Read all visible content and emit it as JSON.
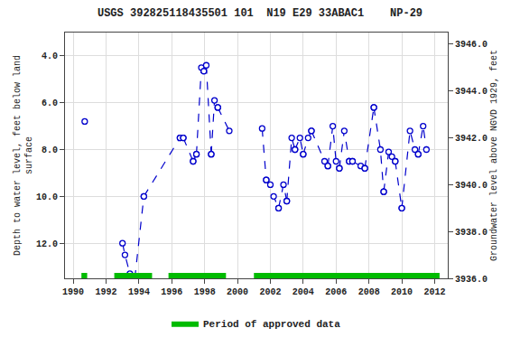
{
  "chart_data": {
    "type": "line",
    "title": "USGS 392825118435501 101  N19 E29 33ABAC1    NP-29",
    "ylabel": "Depth to water level, feet below land\nsurface",
    "y2label": "Groundwater level above NGVD 1929, feet",
    "xlim": [
      1989.5,
      2012.8
    ],
    "xticks": [
      1990,
      1992,
      1994,
      1996,
      1998,
      2000,
      2002,
      2004,
      2006,
      2008,
      2010,
      2012
    ],
    "ylim": [
      13.5,
      3.0
    ],
    "yticks": [
      {
        "value": 4.0,
        "label": "4.0"
      },
      {
        "value": 6.0,
        "label": "6.0"
      },
      {
        "value": 8.0,
        "label": "8.0"
      },
      {
        "value": 10.0,
        "label": "10.0"
      },
      {
        "value": 12.0,
        "label": "12.0"
      }
    ],
    "y2lim": [
      3936.0,
      3946.5
    ],
    "y2ticks": [
      {
        "value": 3936.0,
        "label": "3936.0"
      },
      {
        "value": 3938.0,
        "label": "3938.0"
      },
      {
        "value": 3940.0,
        "label": "3940.0"
      },
      {
        "value": 3942.0,
        "label": "3942.0"
      },
      {
        "value": 3944.0,
        "label": "3944.0"
      },
      {
        "value": 3946.0,
        "label": "3946.0"
      }
    ],
    "grid": true,
    "legend": "bottom",
    "color": "#0000cc",
    "line_style": "dashed",
    "marker": "circle",
    "series": [
      {
        "x": [
          1990.7
        ],
        "values": [
          6.8
        ]
      },
      {
        "x": [
          1993.0,
          1993.15,
          1993.45,
          1993.75
        ],
        "values": [
          12.0,
          12.5,
          13.3,
          13.5
        ]
      },
      {
        "x": [
          1993.75,
          1994.3
        ],
        "values": [
          13.5,
          10.0
        ]
      },
      {
        "x": [
          1994.3,
          1996.5
        ],
        "values": [
          10.0,
          7.5
        ]
      },
      {
        "x": [
          1996.5,
          1996.7
        ],
        "values": [
          7.5,
          7.5
        ]
      },
      {
        "x": [
          1996.7,
          1997.3
        ],
        "values": [
          7.5,
          8.5
        ]
      },
      {
        "x": [
          1997.3,
          1997.5
        ],
        "values": [
          8.5,
          8.2
        ]
      },
      {
        "x": [
          1997.5,
          1997.8,
          1997.95,
          1998.1,
          1998.4
        ],
        "values": [
          8.2,
          4.5,
          4.65,
          4.4,
          8.2
        ]
      },
      {
        "x": [
          1998.4,
          1998.6,
          1998.8
        ],
        "values": [
          8.2,
          5.9,
          6.2
        ]
      },
      {
        "x": [
          1998.8,
          1999.5
        ],
        "values": [
          6.2,
          7.2
        ]
      },
      {
        "x": [
          2001.5,
          2001.75
        ],
        "values": [
          7.1,
          9.3
        ]
      },
      {
        "x": [
          2001.75,
          2002.0,
          2002.2,
          2002.5
        ],
        "values": [
          9.3,
          9.5,
          10.0,
          10.5
        ]
      },
      {
        "x": [
          2002.5,
          2002.8,
          2003.0
        ],
        "values": [
          10.5,
          9.5,
          10.2
        ]
      },
      {
        "x": [
          2003.0,
          2003.3,
          2003.5
        ],
        "values": [
          10.2,
          7.5,
          8.0
        ]
      },
      {
        "x": [
          2003.5,
          2003.8,
          2004.0
        ],
        "values": [
          8.0,
          7.5,
          8.2
        ]
      },
      {
        "x": [
          2004.0,
          2004.3,
          2004.5
        ],
        "values": [
          8.2,
          7.5,
          7.2
        ]
      },
      {
        "x": [
          2004.5,
          2005.3,
          2005.5
        ],
        "values": [
          7.2,
          8.5,
          8.7
        ]
      },
      {
        "x": [
          2005.5,
          2005.8,
          2006.0,
          2006.2
        ],
        "values": [
          8.7,
          7.0,
          8.5,
          8.8
        ]
      },
      {
        "x": [
          2006.2,
          2006.5,
          2006.8
        ],
        "values": [
          8.8,
          7.2,
          8.5
        ]
      },
      {
        "x": [
          2006.8,
          2007.0
        ],
        "values": [
          8.5,
          8.5
        ]
      },
      {
        "x": [
          2007.0,
          2007.5,
          2007.75
        ],
        "values": [
          8.5,
          8.7,
          8.8
        ]
      },
      {
        "x": [
          2007.75,
          2008.3
        ],
        "values": [
          8.8,
          6.2
        ]
      },
      {
        "x": [
          2008.3,
          2008.7,
          2008.9
        ],
        "values": [
          6.2,
          8.0,
          9.8
        ]
      },
      {
        "x": [
          2008.9,
          2009.2,
          2009.4,
          2009.6
        ],
        "values": [
          9.8,
          8.1,
          8.3,
          8.5
        ]
      },
      {
        "x": [
          2009.6,
          2010.0
        ],
        "values": [
          8.5,
          10.5
        ]
      },
      {
        "x": [
          2010.0,
          2010.5,
          2010.8,
          2011.0
        ],
        "values": [
          10.5,
          7.2,
          8.0,
          8.2
        ]
      },
      {
        "x": [
          2011.0,
          2011.3,
          2011.5
        ],
        "values": [
          8.2,
          7.0,
          8.0
        ]
      }
    ],
    "approved_periods": {
      "name": "Period of approved data",
      "color": "#00bb00",
      "ranges": [
        [
          1990.5,
          1990.85
        ],
        [
          1992.5,
          1994.8
        ],
        [
          1995.8,
          1999.3
        ],
        [
          2001.0,
          2012.3
        ]
      ]
    }
  }
}
